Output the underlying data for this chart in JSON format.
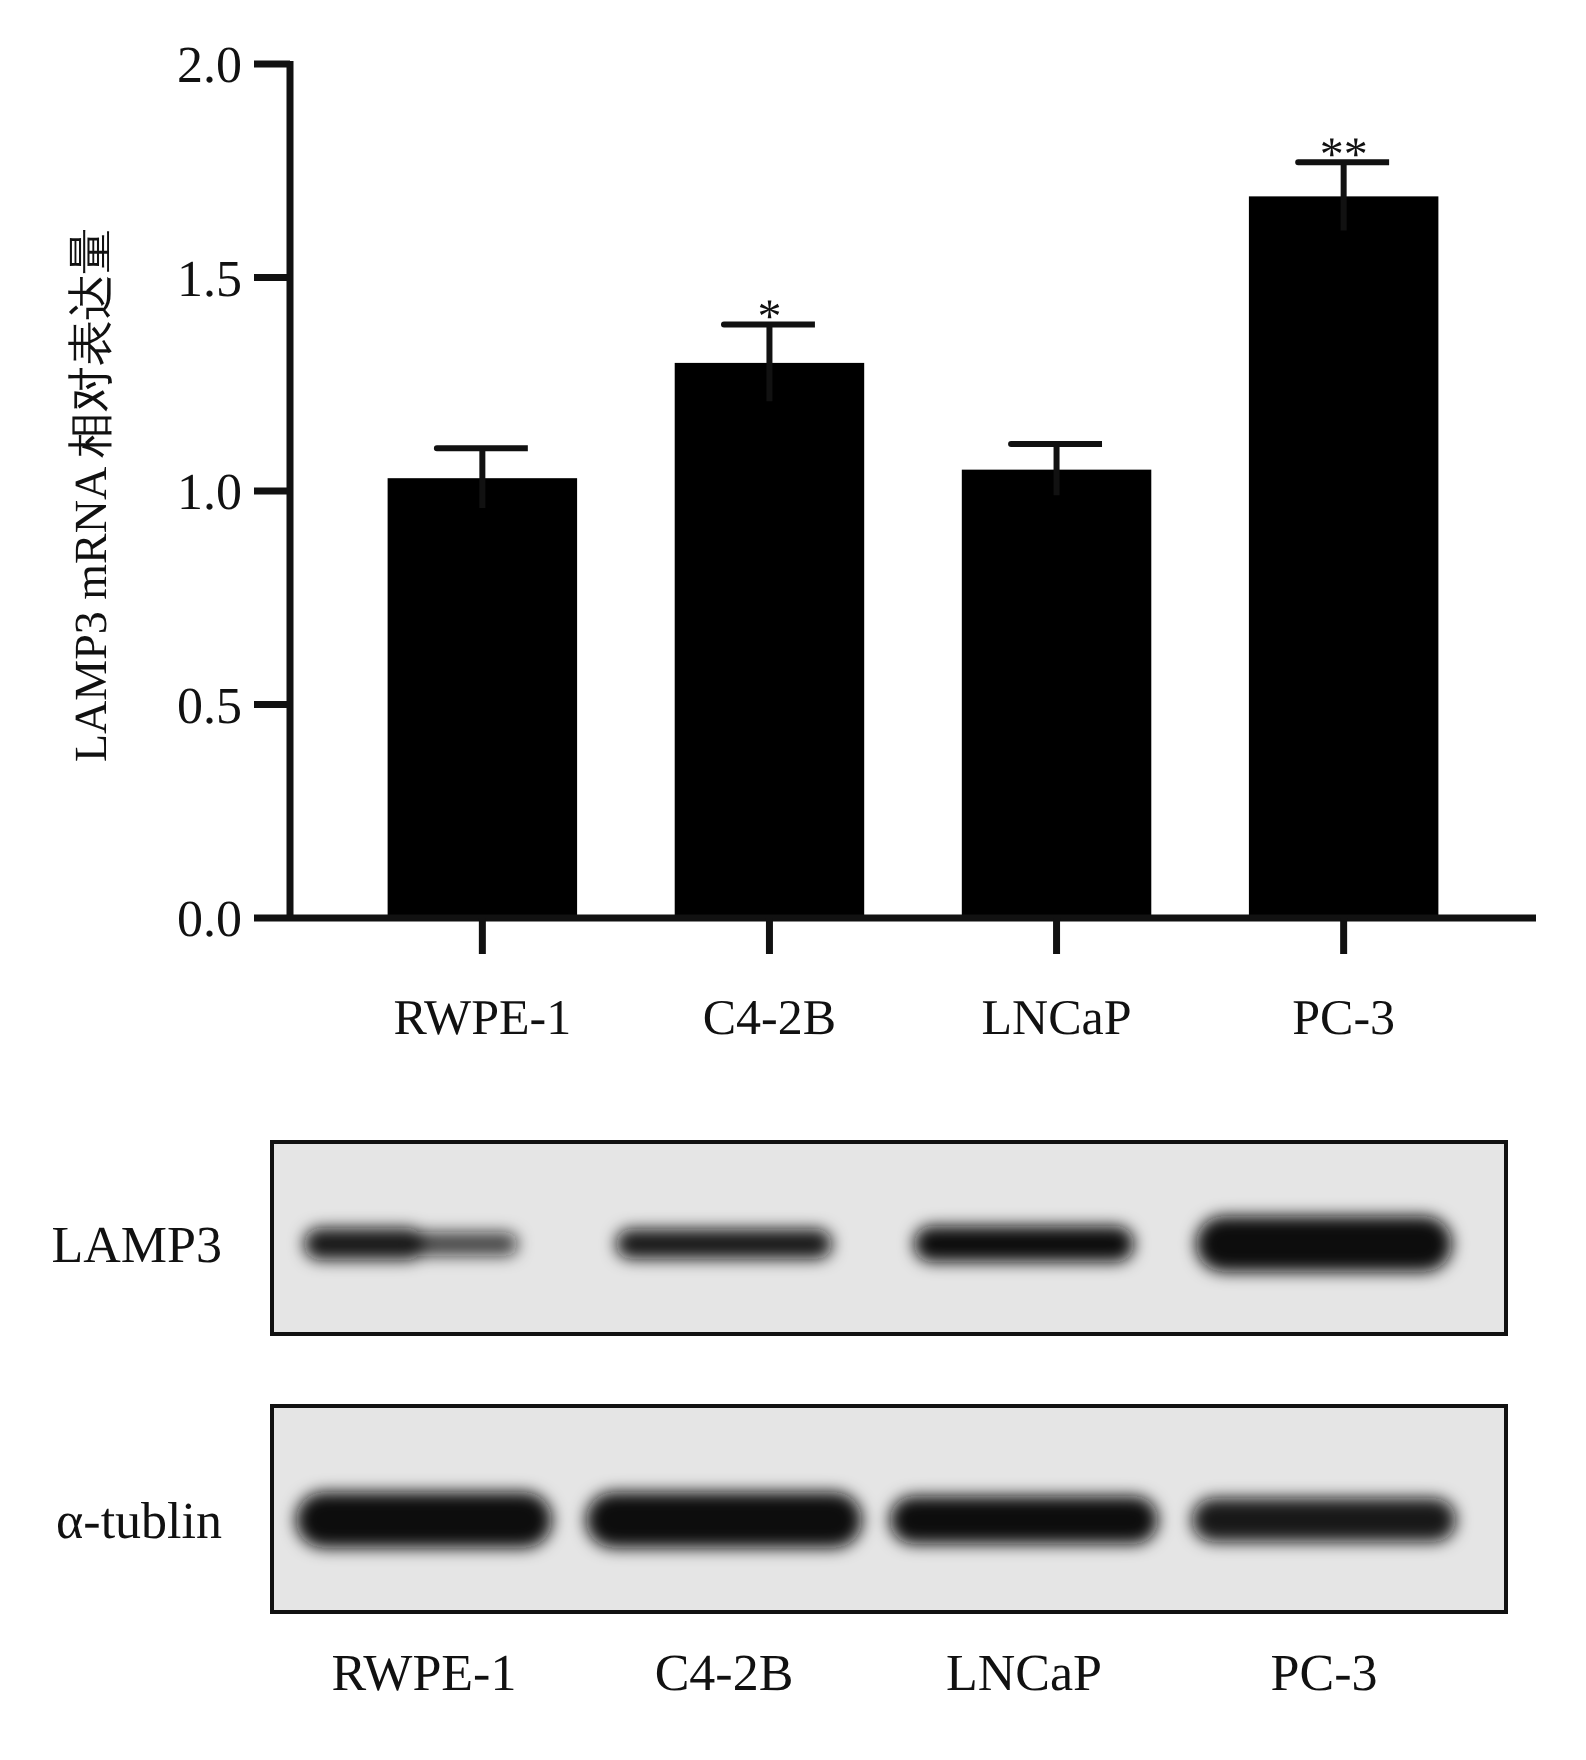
{
  "chart_data": [
    {
      "type": "bar",
      "ylabel": "LAMP3 mRNA 相对表达量",
      "categories": [
        "RWPE-1",
        "C4-2B",
        "LNCaP",
        "PC-3"
      ],
      "values": [
        1.03,
        1.3,
        1.05,
        1.69
      ],
      "errors": [
        0.07,
        0.09,
        0.06,
        0.08
      ],
      "color": "#000000",
      "ylim": [
        0,
        2
      ],
      "yticks": [
        {
          "value": 0,
          "label": "0.0"
        },
        {
          "value": 0.5,
          "label": "0.5"
        },
        {
          "value": 1,
          "label": "1.0"
        },
        {
          "value": 1.5,
          "label": "1.5"
        },
        {
          "value": 2,
          "label": "2.0"
        }
      ],
      "annotations": [
        {
          "text": "*",
          "x": "C4-2B",
          "y": 1.3
        },
        {
          "text": "**",
          "x": "PC-3",
          "y": 1.69
        }
      ]
    },
    {
      "type": "other",
      "categories": [
        "RWPE-1",
        "C4-2B",
        "LNCaP",
        "PC-3"
      ],
      "annotations": [
        "LAMP3",
        "α-tublin"
      ]
    }
  ]
}
